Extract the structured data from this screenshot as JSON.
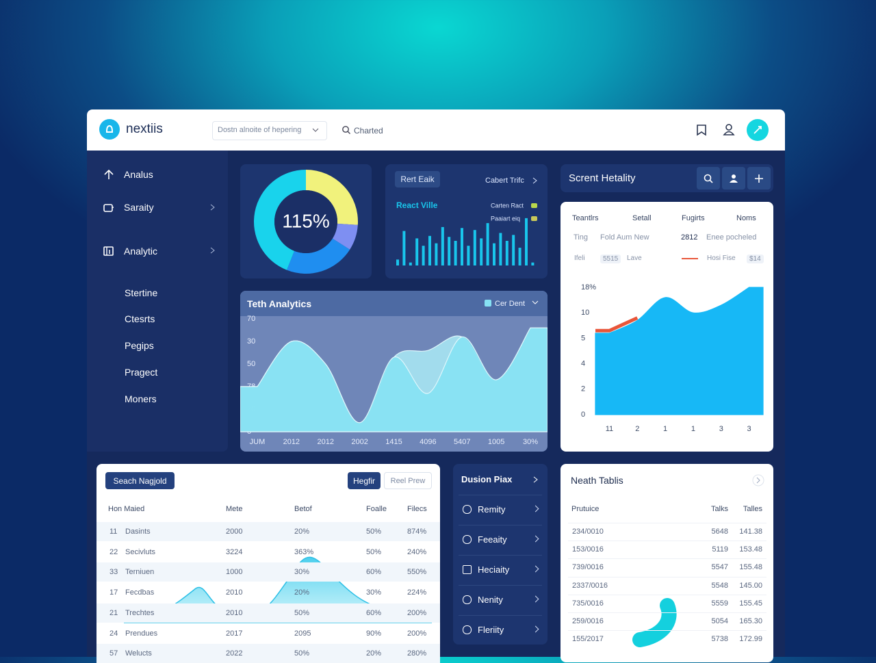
{
  "header": {
    "logo": "nextiis",
    "dropdown": "Dostn alnoite of hepering",
    "search": "Charted"
  },
  "sidebar": {
    "items": [
      "Analus",
      "Saraity",
      "Analytic",
      "Stertine",
      "Ctesrts",
      "Pegips",
      "Pragect",
      "Moners"
    ]
  },
  "chart_data": [
    {
      "type": "pie",
      "center_label": "115%",
      "values": [
        26,
        8,
        22,
        44
      ],
      "colors": [
        "#f1f27c",
        "#7e8ff2",
        "#1f8ef0",
        "#19d3ec"
      ]
    },
    {
      "type": "bar",
      "button": "Rert Eaik",
      "link": "Cabert Trifc",
      "title": "React Ville",
      "legend": [
        "Carten Ract",
        "Paaiart eiq"
      ],
      "legend_colors": [
        "#b9d84c",
        "#c9c95a"
      ],
      "values": [
        12,
        70,
        6,
        55,
        40,
        60,
        45,
        78,
        58,
        50,
        76,
        40,
        72,
        55,
        86,
        45,
        66,
        50,
        62,
        36,
        96,
        6
      ],
      "color": "#19c6ec",
      "ylim": [
        0,
        100
      ]
    },
    {
      "type": "area",
      "title": "Teth Analytics",
      "categories": [
        "JUM",
        "2012",
        "2012",
        "2002",
        "1415",
        "4096",
        "5407",
        "1005",
        "30%"
      ],
      "series": [
        {
          "color": "#a7e6f3",
          "values": [
            20,
            40,
            30,
            4,
            33,
            36,
            42,
            23,
            46
          ]
        },
        {
          "name": "Cer Dent",
          "color": "#86e2f3",
          "values": [
            20,
            40,
            30,
            4,
            33,
            17,
            42,
            23,
            46
          ]
        }
      ],
      "ylim": [
        0,
        50
      ],
      "yticks": [
        0,
        {
          "value": 10,
          "label": "20"
        },
        {
          "value": 20,
          "label": "78"
        },
        {
          "value": 30,
          "label": "50"
        },
        {
          "value": 40,
          "label": "30"
        },
        {
          "value": 50,
          "label": "70"
        }
      ]
    },
    {
      "type": "area",
      "title": "Scrent Hetality",
      "categories": [
        "11",
        "2",
        "1",
        "1",
        "3",
        "3"
      ],
      "series": [
        {
          "color": "#17b8f6",
          "values": [
            3.2,
            3.7,
            4.6,
            4.0,
            4.3,
            5.0
          ]
        },
        {
          "color": "#e8563a",
          "values": [
            3.3,
            3.8,
            null,
            null,
            null,
            null
          ]
        }
      ],
      "ylim": [
        0,
        5
      ],
      "yticks": [
        0,
        {
          "value": 1,
          "label": "2"
        },
        {
          "value": 2,
          "label": "4"
        },
        {
          "value": 3,
          "label": "5"
        },
        {
          "value": 4,
          "label": "10"
        },
        {
          "value": 5,
          "label": "18%"
        }
      ]
    }
  ],
  "status_table": {
    "headers": [
      "Teantlrs",
      "Setall",
      "Fugirts",
      "Noms"
    ],
    "row1": [
      "Ting",
      "Fold Aum New",
      "2812",
      "Enee pocheled"
    ],
    "row2": [
      "Ifeli",
      "5515",
      "Lave",
      "Hosi Fise",
      "$14"
    ]
  },
  "orders": {
    "button": "Seach Nagjold",
    "tabs": [
      "Hegfir",
      "Reel Prew"
    ],
    "headers": [
      "Hon Maied",
      "Mete",
      "Betof",
      "Foalle",
      "Filecs"
    ],
    "rows": [
      [
        "11",
        "Dasints",
        "2000",
        "20%",
        "50%",
        "874%"
      ],
      [
        "22",
        "Secivluts",
        "3224",
        "363%",
        "50%",
        "240%"
      ],
      [
        "33",
        "Terniuen",
        "1000",
        "30%",
        "60%",
        "550%"
      ],
      [
        "17",
        "Fecdbas",
        "2010",
        "20%",
        "30%",
        "224%"
      ],
      [
        "21",
        "Trechtes",
        "2010",
        "50%",
        "60%",
        "200%"
      ],
      [
        "24",
        "Prendues",
        "2017",
        "2095",
        "90%",
        "200%"
      ],
      [
        "57",
        "Welucts",
        "2022",
        "50%",
        "20%",
        "280%"
      ]
    ]
  },
  "menu": {
    "title": "Dusion Piax",
    "items": [
      "Remity",
      "Feeaity",
      "Heciaity",
      "Nenity",
      "Fleriity"
    ]
  },
  "neath": {
    "title": "Neath Tablis",
    "headers": [
      "Prutuice",
      "Talks",
      "Talles"
    ],
    "rows": [
      [
        "234/0010",
        "5648",
        "141.38"
      ],
      [
        "153/0016",
        "5119",
        "153.48"
      ],
      [
        "739/0016",
        "5547",
        "155.48"
      ],
      [
        "2337/0016",
        "5548",
        "145.00"
      ],
      [
        "735/0016",
        "5559",
        "155.45"
      ],
      [
        "259/0016",
        "5054",
        "165.30"
      ],
      [
        "155/2017",
        "5738",
        "172.99"
      ]
    ]
  }
}
